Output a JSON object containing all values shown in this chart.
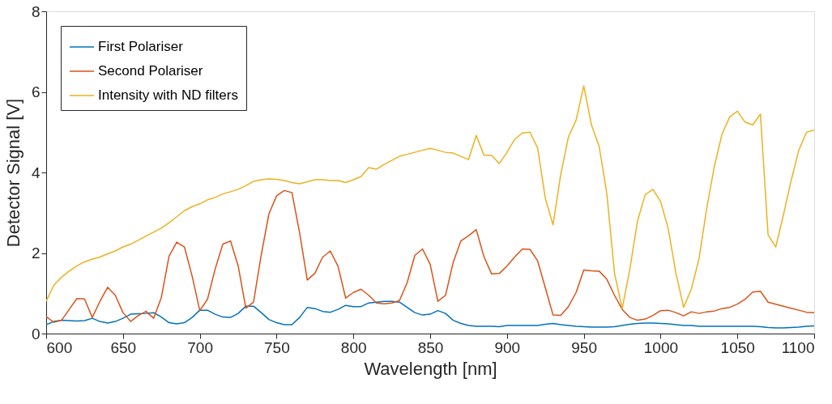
{
  "chart_data": {
    "type": "line",
    "xlabel": "Wavelength [nm]",
    "ylabel": "Detector Signal [V]",
    "x": [
      600,
      605,
      610,
      615,
      620,
      625,
      630,
      635,
      640,
      645,
      650,
      655,
      660,
      665,
      670,
      675,
      680,
      685,
      690,
      695,
      700,
      705,
      710,
      715,
      720,
      725,
      730,
      735,
      740,
      745,
      750,
      755,
      760,
      765,
      770,
      775,
      780,
      785,
      790,
      795,
      800,
      805,
      810,
      815,
      820,
      825,
      830,
      835,
      840,
      845,
      850,
      855,
      860,
      865,
      870,
      875,
      880,
      885,
      890,
      895,
      900,
      905,
      910,
      915,
      920,
      925,
      930,
      935,
      940,
      945,
      950,
      955,
      960,
      965,
      970,
      975,
      980,
      985,
      990,
      995,
      1000,
      1005,
      1010,
      1015,
      1020,
      1025,
      1030,
      1035,
      1040,
      1045,
      1050,
      1055,
      1060,
      1065,
      1070,
      1075,
      1080,
      1085,
      1090,
      1095,
      1100
    ],
    "series": [
      {
        "name": "First Polariser",
        "color": "#0072bd",
        "values": [
          0.22,
          0.3,
          0.33,
          0.32,
          0.31,
          0.32,
          0.38,
          0.3,
          0.26,
          0.3,
          0.38,
          0.48,
          0.49,
          0.5,
          0.52,
          0.41,
          0.27,
          0.24,
          0.27,
          0.4,
          0.58,
          0.58,
          0.48,
          0.41,
          0.4,
          0.5,
          0.68,
          0.68,
          0.52,
          0.35,
          0.27,
          0.22,
          0.22,
          0.4,
          0.65,
          0.62,
          0.55,
          0.53,
          0.6,
          0.7,
          0.67,
          0.67,
          0.76,
          0.78,
          0.8,
          0.8,
          0.78,
          0.65,
          0.52,
          0.46,
          0.48,
          0.57,
          0.5,
          0.33,
          0.25,
          0.2,
          0.18,
          0.18,
          0.18,
          0.17,
          0.2,
          0.2,
          0.2,
          0.2,
          0.2,
          0.23,
          0.25,
          0.22,
          0.2,
          0.18,
          0.17,
          0.16,
          0.16,
          0.16,
          0.17,
          0.2,
          0.23,
          0.25,
          0.26,
          0.26,
          0.25,
          0.24,
          0.22,
          0.2,
          0.2,
          0.18,
          0.18,
          0.18,
          0.18,
          0.18,
          0.18,
          0.18,
          0.18,
          0.17,
          0.15,
          0.14,
          0.14,
          0.15,
          0.16,
          0.18,
          0.19
        ]
      },
      {
        "name": "Second Polariser",
        "color": "#d95319",
        "values": [
          0.42,
          0.28,
          0.33,
          0.6,
          0.87,
          0.86,
          0.4,
          0.8,
          1.15,
          0.95,
          0.52,
          0.3,
          0.45,
          0.55,
          0.38,
          0.9,
          1.92,
          2.27,
          2.15,
          1.43,
          0.57,
          0.85,
          1.6,
          2.22,
          2.3,
          1.68,
          0.63,
          0.78,
          1.95,
          2.97,
          3.42,
          3.55,
          3.5,
          2.5,
          1.33,
          1.5,
          1.9,
          2.05,
          1.67,
          0.88,
          1.02,
          1.1,
          0.95,
          0.76,
          0.74,
          0.76,
          0.82,
          1.26,
          1.94,
          2.1,
          1.72,
          0.8,
          0.95,
          1.77,
          2.3,
          2.43,
          2.58,
          1.91,
          1.48,
          1.49,
          1.68,
          1.9,
          2.1,
          2.09,
          1.8,
          1.13,
          0.46,
          0.45,
          0.67,
          1.02,
          1.58,
          1.56,
          1.55,
          1.35,
          0.95,
          0.6,
          0.4,
          0.33,
          0.36,
          0.45,
          0.57,
          0.58,
          0.52,
          0.44,
          0.54,
          0.5,
          0.54,
          0.56,
          0.62,
          0.65,
          0.73,
          0.85,
          1.03,
          1.05,
          0.78,
          0.73,
          0.68,
          0.63,
          0.58,
          0.53,
          0.52
        ]
      },
      {
        "name": "Intensity with ND filters",
        "color": "#edb120",
        "values": [
          0.8,
          1.2,
          1.4,
          1.55,
          1.68,
          1.78,
          1.85,
          1.9,
          1.98,
          2.05,
          2.15,
          2.22,
          2.32,
          2.42,
          2.52,
          2.62,
          2.75,
          2.9,
          3.05,
          3.15,
          3.22,
          3.32,
          3.38,
          3.47,
          3.52,
          3.58,
          3.67,
          3.78,
          3.82,
          3.84,
          3.83,
          3.8,
          3.75,
          3.72,
          3.77,
          3.82,
          3.82,
          3.8,
          3.8,
          3.75,
          3.82,
          3.9,
          4.12,
          4.08,
          4.2,
          4.3,
          4.4,
          4.45,
          4.5,
          4.55,
          4.6,
          4.55,
          4.5,
          4.48,
          4.4,
          4.32,
          4.92,
          4.43,
          4.42,
          4.22,
          4.5,
          4.82,
          4.98,
          5.0,
          4.6,
          3.35,
          2.7,
          3.95,
          4.88,
          5.3,
          6.15,
          5.18,
          4.65,
          3.48,
          1.5,
          0.62,
          1.6,
          2.8,
          3.45,
          3.58,
          3.28,
          2.6,
          1.5,
          0.65,
          1.1,
          1.85,
          3.1,
          4.15,
          4.95,
          5.38,
          5.52,
          5.25,
          5.18,
          5.45,
          2.45,
          2.15,
          2.95,
          3.8,
          4.55,
          5.0,
          5.05
        ]
      }
    ],
    "xlim": [
      600,
      1100
    ],
    "xticks": [
      600,
      650,
      700,
      750,
      800,
      850,
      900,
      950,
      1000,
      1050,
      1100
    ],
    "ylim": [
      0,
      8
    ],
    "yticks": [
      0,
      2,
      4,
      6,
      8
    ],
    "grid": false,
    "legend": "top left",
    "line_style": "solid",
    "marker": "none"
  }
}
